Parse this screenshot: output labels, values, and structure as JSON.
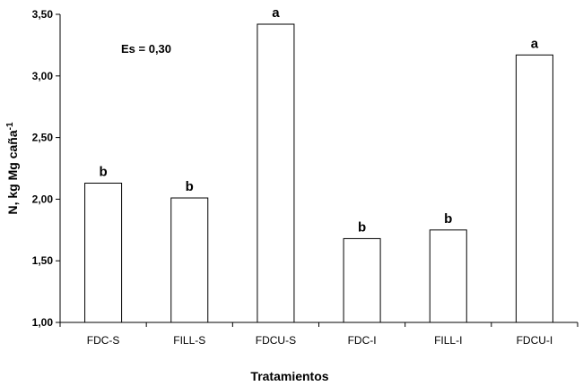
{
  "chart_data": {
    "type": "bar",
    "ylabel": "N, kg Mg caña",
    "ylabel_sup": "-1",
    "xlabel": "Tratamientos",
    "annotation": "Es = 0,30",
    "ylim": [
      1.0,
      3.5
    ],
    "yticks": [
      "1,00",
      "1,50",
      "2,00",
      "2,50",
      "3,00",
      "3,50"
    ],
    "categories": [
      "FDC-S",
      "FILL-S",
      "FDCU-S",
      "FDC-I",
      "FILL-I",
      "FDCU-I"
    ],
    "values": [
      2.13,
      2.01,
      3.42,
      1.68,
      1.75,
      3.17
    ],
    "letters": [
      "b",
      "b",
      "a",
      "b",
      "b",
      "a"
    ],
    "grid": false,
    "bar_fill": "#ffffff",
    "bar_stroke": "#000000"
  }
}
